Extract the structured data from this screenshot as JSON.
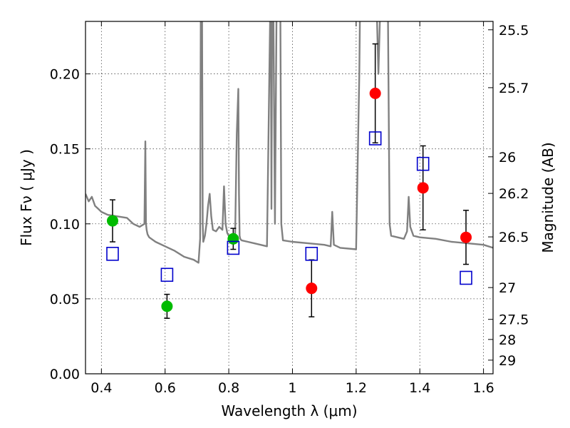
{
  "chart_data": {
    "type": "scatter",
    "title": "",
    "xlabel": "Wavelength  λ (μm)",
    "ylabel": "Flux  Fν  ( μJy )",
    "y2label": "Magnitude (AB)",
    "xlim": [
      0.35,
      1.63
    ],
    "ylim": [
      0.0,
      0.235
    ],
    "x_ticks": [
      0.4,
      0.6,
      0.8,
      1.0,
      1.2,
      1.4,
      1.6
    ],
    "x_tick_labels": [
      "0.4",
      "0.6",
      "0.8",
      "1",
      "1.2",
      "1.4",
      "1.6"
    ],
    "y_ticks": [
      0.0,
      0.05,
      0.1,
      0.15,
      0.2
    ],
    "y_tick_labels": [
      "0.00",
      "0.05",
      "0.10",
      "0.15",
      "0.20"
    ],
    "y2_ticks": [
      {
        "label": "25.5",
        "flux": 0.2294
      },
      {
        "label": "25.7",
        "flux": 0.1908
      },
      {
        "label": "26",
        "flux": 0.1447
      },
      {
        "label": "26.2",
        "flux": 0.1203
      },
      {
        "label": "26.5",
        "flux": 0.0913
      },
      {
        "label": "27",
        "flux": 0.0575
      },
      {
        "label": "27.5",
        "flux": 0.0363
      },
      {
        "label": "28",
        "flux": 0.0229
      },
      {
        "label": "29",
        "flux": 0.0091
      }
    ],
    "grid": true,
    "colors": {
      "spectrum": "#808080",
      "green_points": "#00bb00",
      "red_points": "#ff0000",
      "model_boxes": "#0000cc",
      "error_bars": "#000000"
    },
    "series": [
      {
        "marker": "filled-circle-green",
        "points": [
          {
            "x": 0.435,
            "y": 0.102,
            "err": 0.014
          },
          {
            "x": 0.606,
            "y": 0.045,
            "err": 0.008
          },
          {
            "x": 0.814,
            "y": 0.09,
            "err": 0.007
          }
        ]
      },
      {
        "marker": "filled-circle-red",
        "points": [
          {
            "x": 1.06,
            "y": 0.057,
            "err": 0.019
          },
          {
            "x": 1.26,
            "y": 0.187,
            "err": 0.033
          },
          {
            "x": 1.41,
            "y": 0.124,
            "err": 0.028
          },
          {
            "x": 1.545,
            "y": 0.091,
            "err": 0.018
          }
        ]
      },
      {
        "marker": "open-square-blue",
        "points": [
          {
            "x": 0.435,
            "y": 0.08
          },
          {
            "x": 0.606,
            "y": 0.066
          },
          {
            "x": 0.814,
            "y": 0.084
          },
          {
            "x": 1.06,
            "y": 0.08
          },
          {
            "x": 1.26,
            "y": 0.157
          },
          {
            "x": 1.41,
            "y": 0.14
          },
          {
            "x": 1.545,
            "y": 0.064
          }
        ]
      },
      {
        "marker": "line-gray",
        "x": [
          0.35,
          0.36,
          0.37,
          0.38,
          0.39,
          0.4,
          0.42,
          0.45,
          0.48,
          0.5,
          0.52,
          0.535,
          0.538,
          0.54,
          0.542,
          0.545,
          0.55,
          0.57,
          0.6,
          0.63,
          0.66,
          0.69,
          0.705,
          0.71,
          0.712,
          0.714,
          0.716,
          0.718,
          0.72,
          0.725,
          0.73,
          0.735,
          0.74,
          0.745,
          0.75,
          0.76,
          0.77,
          0.78,
          0.785,
          0.79,
          0.795,
          0.8,
          0.81,
          0.82,
          0.825,
          0.83,
          0.832,
          0.834,
          0.836,
          0.84,
          0.86,
          0.88,
          0.9,
          0.92,
          0.93,
          0.932,
          0.934,
          0.936,
          0.94,
          0.945,
          0.95,
          0.952,
          0.955,
          0.957,
          0.96,
          0.962,
          0.965,
          0.97,
          1.0,
          1.05,
          1.1,
          1.12,
          1.125,
          1.13,
          1.15,
          1.2,
          1.21,
          1.212,
          1.215,
          1.22,
          1.23,
          1.24,
          1.25,
          1.255,
          1.26,
          1.265,
          1.27,
          1.275,
          1.28,
          1.29,
          1.3,
          1.305,
          1.31,
          1.33,
          1.35,
          1.36,
          1.365,
          1.37,
          1.38,
          1.4,
          1.45,
          1.5,
          1.55,
          1.6,
          1.63
        ],
        "y": [
          0.12,
          0.115,
          0.118,
          0.112,
          0.11,
          0.108,
          0.106,
          0.105,
          0.104,
          0.1,
          0.098,
          0.1,
          0.155,
          0.1,
          0.096,
          0.093,
          0.091,
          0.088,
          0.085,
          0.082,
          0.078,
          0.076,
          0.074,
          0.09,
          0.24,
          0.24,
          0.24,
          0.1,
          0.088,
          0.092,
          0.1,
          0.112,
          0.12,
          0.105,
          0.096,
          0.095,
          0.098,
          0.096,
          0.125,
          0.1,
          0.094,
          0.092,
          0.091,
          0.092,
          0.16,
          0.19,
          0.12,
          0.092,
          0.09,
          0.089,
          0.088,
          0.087,
          0.086,
          0.085,
          0.24,
          0.24,
          0.11,
          0.24,
          0.24,
          0.1,
          0.24,
          0.24,
          0.24,
          0.24,
          0.24,
          0.24,
          0.1,
          0.089,
          0.088,
          0.087,
          0.086,
          0.085,
          0.108,
          0.086,
          0.084,
          0.083,
          0.2,
          0.24,
          0.24,
          0.24,
          0.24,
          0.24,
          0.24,
          0.24,
          0.24,
          0.24,
          0.2,
          0.24,
          0.24,
          0.24,
          0.24,
          0.1,
          0.092,
          0.091,
          0.09,
          0.095,
          0.118,
          0.098,
          0.092,
          0.091,
          0.09,
          0.088,
          0.087,
          0.086,
          0.084
        ]
      }
    ]
  }
}
